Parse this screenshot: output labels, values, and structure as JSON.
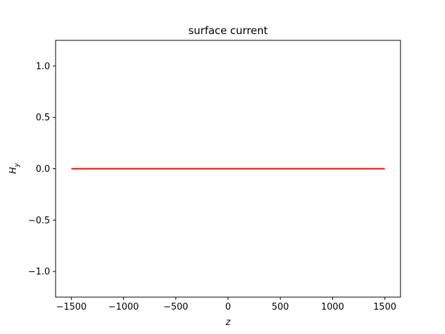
{
  "chart_data": {
    "type": "line",
    "title": "surface current",
    "xlabel": "z",
    "ylabel_main": "H",
    "ylabel_sub": "y",
    "xlim": [
      -1650,
      1650
    ],
    "ylim": [
      -1.25,
      1.25
    ],
    "xticks": [
      -1500,
      -1000,
      -500,
      0,
      500,
      1000,
      1500
    ],
    "xtick_labels": [
      "−1500",
      "−1000",
      "−500",
      "0",
      "500",
      "1000",
      "1500"
    ],
    "yticks": [
      -1.0,
      -0.5,
      0.0,
      0.5,
      1.0
    ],
    "ytick_labels": [
      "−1.0",
      "−0.5",
      "0.0",
      "0.5",
      "1.0"
    ],
    "grid": false,
    "series": [
      {
        "color": "#ff0000",
        "x": [
          -1500,
          1500
        ],
        "y": [
          0.0,
          0.0
        ]
      }
    ]
  }
}
